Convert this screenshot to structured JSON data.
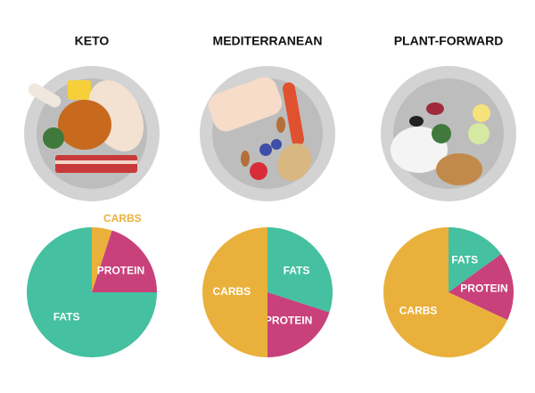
{
  "chart_data": [
    {
      "type": "pie",
      "title": "KETO",
      "categories": [
        "CARBS",
        "PROTEIN",
        "FATS"
      ],
      "values": [
        5,
        20,
        75
      ],
      "colors": [
        "#e9b13b",
        "#c8417b",
        "#45c0a0"
      ]
    },
    {
      "type": "pie",
      "title": "MEDITERRANEAN",
      "categories": [
        "FATS",
        "PROTEIN",
        "CARBS"
      ],
      "values": [
        30,
        20,
        50
      ],
      "colors": [
        "#45c0a0",
        "#c8417b",
        "#e9b13b"
      ]
    },
    {
      "type": "pie",
      "title": "PLANT-FORWARD",
      "categories": [
        "FATS",
        "PROTEIN",
        "CARBS"
      ],
      "values": [
        15,
        17,
        68
      ],
      "colors": [
        "#45c0a0",
        "#c8417b",
        "#e9b13b"
      ]
    }
  ]
}
